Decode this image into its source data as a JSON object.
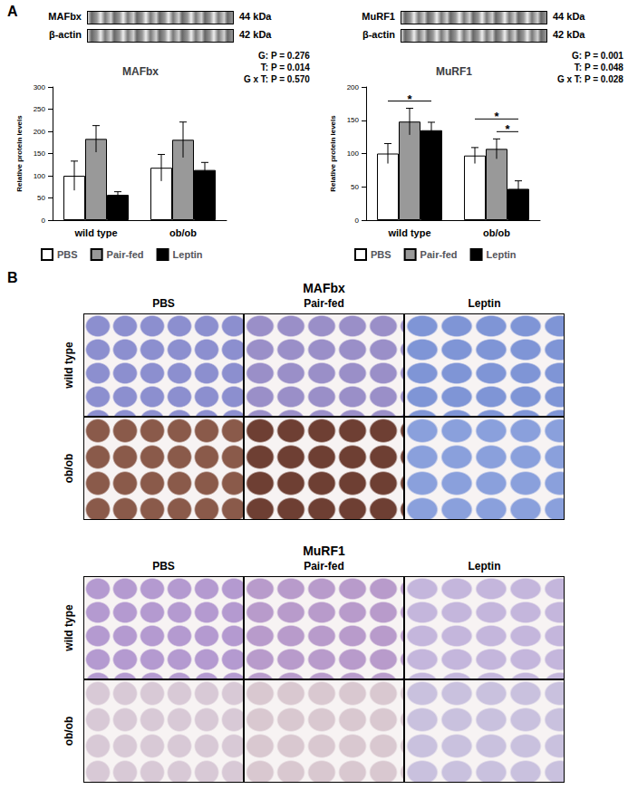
{
  "figure": {
    "panel_labels": [
      "A",
      "B"
    ],
    "blots": [
      {
        "bands": [
          {
            "label": "MAFbx",
            "size": "44 kDa"
          },
          {
            "label": "β-actin",
            "size": "42 kDa"
          }
        ]
      },
      {
        "bands": [
          {
            "label": "MuRF1",
            "size": "44 kDa"
          },
          {
            "label": "β-actin",
            "size": "42 kDa"
          }
        ]
      }
    ],
    "histology": [
      {
        "title": "MAFbx",
        "columns": [
          "PBS",
          "Pair-fed",
          "Leptin"
        ],
        "rows": [
          "wild type",
          "ob/ob"
        ]
      },
      {
        "title": "MuRF1",
        "columns": [
          "PBS",
          "Pair-fed",
          "Leptin"
        ],
        "rows": [
          "wild type",
          "ob/ob"
        ]
      }
    ]
  },
  "chart_data": [
    {
      "type": "bar",
      "title": "MAFbx",
      "y_label": "Relative protein levels",
      "categories": [
        "wild type",
        "ob/ob"
      ],
      "series": [
        {
          "name": "PBS",
          "color": "#ffffff",
          "values": [
            100,
            118
          ],
          "errors": [
            33,
            30
          ]
        },
        {
          "name": "Pair-fed",
          "color": "#999999",
          "values": [
            183,
            181
          ],
          "errors": [
            30,
            40
          ]
        },
        {
          "name": "Leptin",
          "color": "#000000",
          "values": [
            57,
            113
          ],
          "errors": [
            7,
            17
          ]
        }
      ],
      "ylim": [
        0,
        300
      ],
      "yticks": [
        0,
        50,
        100,
        150,
        200,
        250,
        300
      ],
      "legend": "bottom",
      "annotations": [
        "G: P = 0.276",
        "T: P = 0.014",
        "G x T: P = 0.570"
      ],
      "significance": []
    },
    {
      "type": "bar",
      "title": "MuRF1",
      "y_label": "Relative protein levels",
      "categories": [
        "wild type",
        "ob/ob"
      ],
      "series": [
        {
          "name": "PBS",
          "color": "#ffffff",
          "values": [
            100,
            97
          ],
          "errors": [
            15,
            12
          ]
        },
        {
          "name": "Pair-fed",
          "color": "#999999",
          "values": [
            148,
            107
          ],
          "errors": [
            20,
            15
          ]
        },
        {
          "name": "Leptin",
          "color": "#000000",
          "values": [
            135,
            47
          ],
          "errors": [
            12,
            12
          ]
        }
      ],
      "ylim": [
        0,
        200
      ],
      "yticks": [
        0,
        50,
        100,
        150,
        200
      ],
      "legend": "bottom",
      "annotations": [
        "G: P = 0.001",
        "T: P = 0.048",
        "G x T: P = 0.028"
      ],
      "significance": [
        {
          "category": 0,
          "from": "PBS",
          "to": "Leptin",
          "label": "*"
        },
        {
          "category": 1,
          "from": "Pair-fed",
          "to": "Leptin",
          "label": "*"
        },
        {
          "category": 1,
          "from": "PBS",
          "to": "Leptin",
          "label": "*"
        }
      ]
    }
  ]
}
